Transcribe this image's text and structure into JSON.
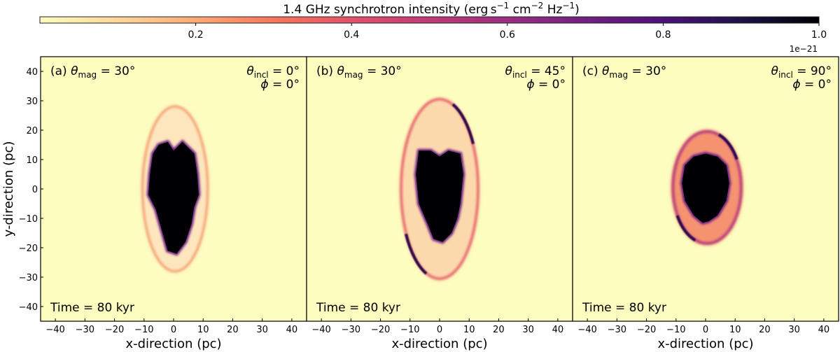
{
  "chart_data": {
    "type": "heatmap",
    "colorbar": {
      "label_main": "1.4 GHz synchrotron intensity (erg s",
      "label_parts": [
        "1.4 GHz synchrotron intensity (erg s",
        "−1",
        " cm",
        "−2",
        " Hz",
        "−1",
        ")"
      ],
      "colormap": "magma_r",
      "range": [
        0,
        1.0
      ],
      "ticks": [
        0.2,
        0.4,
        0.6,
        0.8,
        1.0
      ],
      "tick_labels": [
        "0.2",
        "0.4",
        "0.6",
        "0.8",
        "1.0"
      ],
      "offset_text": "1e−21",
      "placement": "top"
    },
    "xlabel": "x-direction (pc)",
    "ylabel": "y-direction (pc)",
    "xlim": [
      -45,
      45
    ],
    "ylim": [
      -45,
      45
    ],
    "xticks": [
      -40,
      -30,
      -20,
      -10,
      0,
      10,
      20,
      30,
      40
    ],
    "xtick_labels": [
      "−40",
      "−30",
      "−20",
      "−10",
      "0",
      "10",
      "20",
      "30",
      "40"
    ],
    "yticks": [
      -40,
      -30,
      -20,
      -10,
      0,
      10,
      20,
      30,
      40
    ],
    "ytick_labels": [
      "−40",
      "−30",
      "−20",
      "−10",
      "0",
      "10",
      "20",
      "30",
      "40"
    ],
    "panels": [
      {
        "label": "(a)",
        "theta_mag": "30°",
        "theta_incl": "0°",
        "phi": "0°",
        "time": "Time = 80 kyr"
      },
      {
        "label": "(b)",
        "theta_mag": "30°",
        "theta_incl": "45°",
        "phi": "0°",
        "time": "Time = 80 kyr"
      },
      {
        "label": "(c)",
        "theta_mag": "30°",
        "theta_incl": "90°",
        "phi": "0°",
        "time": "Time = 80 kyr"
      }
    ],
    "colors": {
      "background": "#fcfdbf",
      "core": "#000004",
      "shell": "#fde2b4",
      "rim": "#f07d5e",
      "dark_rim": "#3b0f70"
    }
  }
}
